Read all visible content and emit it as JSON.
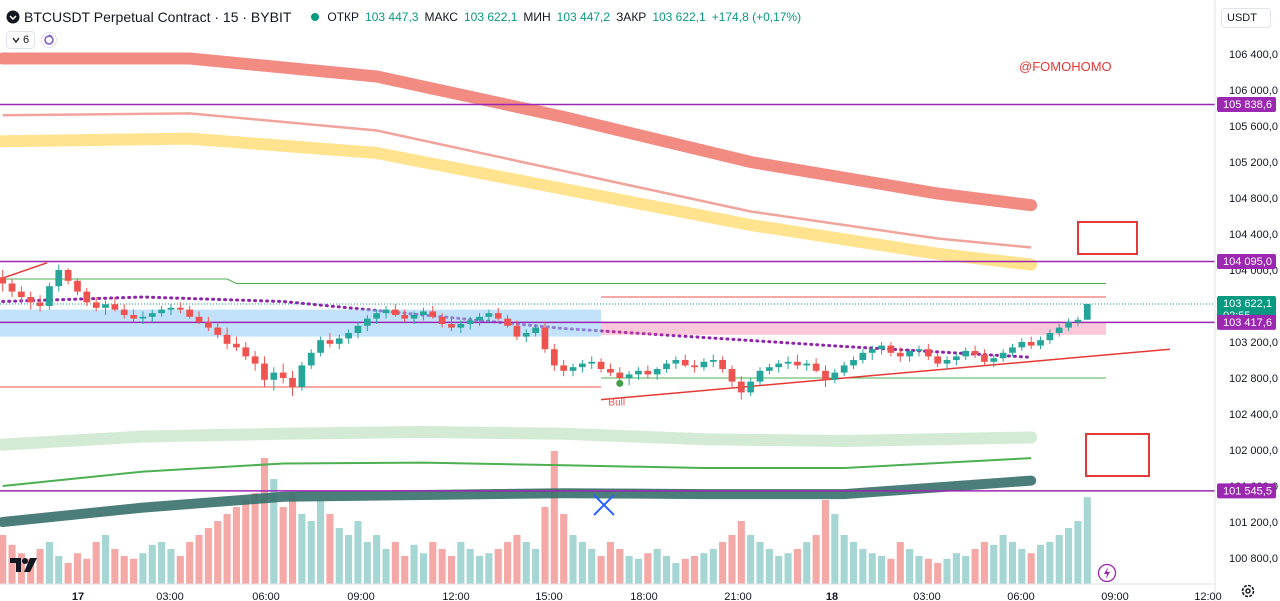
{
  "header": {
    "symbol": "BTCUSDT Perpetual Contract · 15 · BYBIT",
    "open_label": "ОТКР",
    "open": "103 447,3",
    "high_label": "МАКС",
    "high": "103 622,1",
    "low_label": "МИН",
    "low": "103 447,2",
    "close_label": "ЗАКР",
    "close": "103 622,1",
    "change": "+174,8 (+0,17%)"
  },
  "toolbar": {
    "indicator_count": "6",
    "currency": "USDT"
  },
  "watermark": "@FOMOHOMO",
  "bull_label": "Bull",
  "colors": {
    "up": "#26a69a",
    "down": "#ef5350",
    "purple": "#9c27b0",
    "accent": "#2962ff"
  },
  "icons": {
    "logo": "tradingview-logo-icon",
    "settings": "gear-icon",
    "alert": "lightning-icon"
  },
  "price_tags": [
    {
      "value": 105838.6,
      "label": "105 838,6",
      "color": "#9c27b0"
    },
    {
      "value": 104095.0,
      "label": "104 095,0",
      "color": "#9c27b0"
    },
    {
      "value": 103622.1,
      "label": "103 622,1",
      "sub": "02:55",
      "color": "#089981"
    },
    {
      "value": 103417.6,
      "label": "103 417,6",
      "color": "#9c27b0"
    },
    {
      "value": 101545.5,
      "label": "101 545,5",
      "color": "#9c27b0"
    }
  ],
  "chart_data": {
    "type": "candlestick",
    "timeframe": "15",
    "ylim": [
      100600,
      106600
    ],
    "y_ticks": [
      {
        "value": 106400,
        "label": "106 400,0"
      },
      {
        "value": 106000,
        "label": "106 000,0"
      },
      {
        "value": 105600,
        "label": "105 600,0"
      },
      {
        "value": 105200,
        "label": "105 200,0"
      },
      {
        "value": 104800,
        "label": "104 800,0"
      },
      {
        "value": 104400,
        "label": "104 400,0"
      },
      {
        "value": 104000,
        "label": "104 000,0"
      },
      {
        "value": 103200,
        "label": "103 200,0"
      },
      {
        "value": 102800,
        "label": "102 800,0"
      },
      {
        "value": 102400,
        "label": "102 400,0"
      },
      {
        "value": 102000,
        "label": "102 000,0"
      },
      {
        "value": 101600,
        "label": "101 600,0"
      },
      {
        "value": 101200,
        "label": "101 200,0"
      },
      {
        "value": 100800,
        "label": "100 800,0"
      }
    ],
    "x_ticks": [
      "17",
      "03:00",
      "06:00",
      "09:00",
      "12:00",
      "15:00",
      "18:00",
      "21:00",
      "18",
      "03:00",
      "06:00",
      "09:00",
      "12:00"
    ],
    "bars_count": 117,
    "candles_ohlc": [
      [
        103920,
        104000,
        103760,
        103850
      ],
      [
        103850,
        103900,
        103700,
        103760
      ],
      [
        103760,
        103820,
        103620,
        103700
      ],
      [
        103700,
        103760,
        103560,
        103640
      ],
      [
        103640,
        103720,
        103540,
        103600
      ],
      [
        103600,
        103860,
        103560,
        103820
      ],
      [
        103820,
        104060,
        103760,
        104000
      ],
      [
        104000,
        104020,
        103840,
        103880
      ],
      [
        103880,
        103900,
        103720,
        103760
      ],
      [
        103760,
        103800,
        103600,
        103640
      ],
      [
        103640,
        103700,
        103540,
        103580
      ],
      [
        103580,
        103660,
        103500,
        103620
      ],
      [
        103620,
        103700,
        103540,
        103560
      ],
      [
        103560,
        103620,
        103460,
        103500
      ],
      [
        103500,
        103560,
        103420,
        103460
      ],
      [
        103460,
        103540,
        103400,
        103480
      ],
      [
        103480,
        103560,
        103420,
        103520
      ],
      [
        103520,
        103600,
        103480,
        103560
      ],
      [
        103560,
        103620,
        103500,
        103580
      ],
      [
        103580,
        103640,
        103520,
        103560
      ],
      [
        103560,
        103600,
        103460,
        103480
      ],
      [
        103480,
        103540,
        103400,
        103420
      ],
      [
        103420,
        103480,
        103320,
        103360
      ],
      [
        103360,
        103420,
        103240,
        103280
      ],
      [
        103280,
        103360,
        103120,
        103180
      ],
      [
        103180,
        103260,
        103100,
        103140
      ],
      [
        103140,
        103200,
        103000,
        103040
      ],
      [
        103040,
        103100,
        102880,
        102960
      ],
      [
        102960,
        103040,
        102700,
        102780
      ],
      [
        102780,
        102920,
        102660,
        102860
      ],
      [
        102860,
        102960,
        102740,
        102800
      ],
      [
        102800,
        102880,
        102600,
        102700
      ],
      [
        102700,
        102980,
        102660,
        102940
      ],
      [
        102940,
        103120,
        102900,
        103080
      ],
      [
        103080,
        103260,
        103040,
        103220
      ],
      [
        103220,
        103300,
        103140,
        103180
      ],
      [
        103180,
        103280,
        103120,
        103240
      ],
      [
        103240,
        103340,
        103180,
        103300
      ],
      [
        103300,
        103420,
        103240,
        103380
      ],
      [
        103380,
        103500,
        103320,
        103460
      ],
      [
        103460,
        103560,
        103400,
        103520
      ],
      [
        103520,
        103600,
        103460,
        103560
      ],
      [
        103560,
        103620,
        103480,
        103500
      ],
      [
        103500,
        103560,
        103420,
        103460
      ],
      [
        103460,
        103540,
        103400,
        103500
      ],
      [
        103500,
        103580,
        103440,
        103540
      ],
      [
        103540,
        103600,
        103460,
        103480
      ],
      [
        103480,
        103520,
        103360,
        103400
      ],
      [
        103400,
        103460,
        103320,
        103360
      ],
      [
        103360,
        103440,
        103300,
        103400
      ],
      [
        103400,
        103480,
        103340,
        103440
      ],
      [
        103440,
        103520,
        103380,
        103480
      ],
      [
        103480,
        103560,
        103420,
        103520
      ],
      [
        103520,
        103580,
        103440,
        103460
      ],
      [
        103460,
        103500,
        103360,
        103380
      ],
      [
        103380,
        103440,
        103220,
        103260
      ],
      [
        103260,
        103340,
        103200,
        103300
      ],
      [
        103300,
        103400,
        103260,
        103360
      ],
      [
        103360,
        103420,
        103080,
        103120
      ],
      [
        103120,
        103180,
        102880,
        102940
      ],
      [
        102940,
        103000,
        102820,
        102880
      ],
      [
        102880,
        102960,
        102820,
        102920
      ],
      [
        102920,
        103000,
        102860,
        102960
      ],
      [
        102960,
        103040,
        102900,
        102980
      ],
      [
        102980,
        103020,
        102860,
        102900
      ],
      [
        102900,
        102960,
        102820,
        102860
      ],
      [
        102860,
        102920,
        102740,
        102800
      ],
      [
        102800,
        102880,
        102720,
        102840
      ],
      [
        102840,
        102920,
        102780,
        102880
      ],
      [
        102880,
        102940,
        102800,
        102840
      ],
      [
        102840,
        102920,
        102780,
        102900
      ],
      [
        102900,
        103000,
        102860,
        102960
      ],
      [
        102960,
        103040,
        102900,
        103000
      ],
      [
        103000,
        103060,
        102920,
        102940
      ],
      [
        102940,
        103000,
        102860,
        102920
      ],
      [
        102920,
        103020,
        102880,
        102980
      ],
      [
        102980,
        103060,
        102920,
        103000
      ],
      [
        103000,
        103040,
        102860,
        102900
      ],
      [
        102900,
        102940,
        102700,
        102760
      ],
      [
        102760,
        102820,
        102560,
        102640
      ],
      [
        102640,
        102800,
        102600,
        102760
      ],
      [
        102760,
        102920,
        102720,
        102880
      ],
      [
        102880,
        102960,
        102840,
        102920
      ],
      [
        102920,
        103000,
        102860,
        102960
      ],
      [
        102960,
        103040,
        102900,
        102980
      ],
      [
        102980,
        103060,
        102900,
        102940
      ],
      [
        102940,
        103000,
        102880,
        102960
      ],
      [
        102960,
        103020,
        102860,
        102880
      ],
      [
        102880,
        102940,
        102700,
        102780
      ],
      [
        102780,
        102900,
        102740,
        102860
      ],
      [
        102860,
        102980,
        102820,
        102940
      ],
      [
        102940,
        103040,
        102900,
        103000
      ],
      [
        103000,
        103120,
        102960,
        103080
      ],
      [
        103080,
        103160,
        103000,
        103120
      ],
      [
        103120,
        103200,
        103060,
        103160
      ],
      [
        103160,
        103200,
        103040,
        103080
      ],
      [
        103080,
        103140,
        102980,
        103040
      ],
      [
        103040,
        103120,
        102980,
        103100
      ],
      [
        103100,
        103160,
        103040,
        103120
      ],
      [
        103120,
        103180,
        103000,
        103040
      ],
      [
        103040,
        103080,
        102920,
        102960
      ],
      [
        102960,
        103040,
        102900,
        103000
      ],
      [
        103000,
        103080,
        102940,
        103040
      ],
      [
        103040,
        103140,
        103000,
        103100
      ],
      [
        103100,
        103160,
        103020,
        103060
      ],
      [
        103060,
        103120,
        102940,
        102980
      ],
      [
        102980,
        103060,
        102920,
        103020
      ],
      [
        103020,
        103120,
        102980,
        103080
      ],
      [
        103080,
        103180,
        103040,
        103140
      ],
      [
        103140,
        103240,
        103100,
        103200
      ],
      [
        103200,
        103260,
        103120,
        103160
      ],
      [
        103160,
        103260,
        103120,
        103220
      ],
      [
        103220,
        103340,
        103180,
        103300
      ],
      [
        103300,
        103400,
        103260,
        103360
      ],
      [
        103360,
        103460,
        103320,
        103420
      ],
      [
        103420,
        103480,
        103380,
        103447
      ],
      [
        103447.3,
        103622.1,
        103447.2,
        103622.1
      ]
    ],
    "volume_relative": [
      0.35,
      0.28,
      0.22,
      0.18,
      0.25,
      0.3,
      0.2,
      0.15,
      0.22,
      0.18,
      0.3,
      0.35,
      0.25,
      0.2,
      0.18,
      0.22,
      0.28,
      0.3,
      0.25,
      0.2,
      0.3,
      0.35,
      0.4,
      0.45,
      0.5,
      0.55,
      0.6,
      0.65,
      0.9,
      0.75,
      0.55,
      0.65,
      0.5,
      0.45,
      0.6,
      0.5,
      0.4,
      0.35,
      0.45,
      0.3,
      0.35,
      0.25,
      0.3,
      0.2,
      0.28,
      0.22,
      0.3,
      0.25,
      0.2,
      0.3,
      0.25,
      0.2,
      0.22,
      0.25,
      0.3,
      0.35,
      0.3,
      0.25,
      0.55,
      0.95,
      0.5,
      0.35,
      0.3,
      0.25,
      0.2,
      0.3,
      0.25,
      0.2,
      0.18,
      0.22,
      0.25,
      0.2,
      0.15,
      0.18,
      0.2,
      0.22,
      0.25,
      0.3,
      0.35,
      0.45,
      0.35,
      0.3,
      0.25,
      0.2,
      0.22,
      0.25,
      0.3,
      0.35,
      0.6,
      0.5,
      0.35,
      0.3,
      0.25,
      0.22,
      0.2,
      0.18,
      0.3,
      0.25,
      0.2,
      0.18,
      0.15,
      0.18,
      0.22,
      0.2,
      0.25,
      0.3,
      0.28,
      0.35,
      0.3,
      0.25,
      0.22,
      0.28,
      0.3,
      0.35,
      0.4,
      0.45,
      0.62
    ],
    "lines": {
      "ema_red_thick": [
        [
          0,
          106350
        ],
        [
          20,
          106350
        ],
        [
          40,
          106150
        ],
        [
          60,
          105700
        ],
        [
          80,
          105200
        ],
        [
          100,
          104850
        ],
        [
          110,
          104720
        ]
      ],
      "ema_red_thin": [
        [
          0,
          105720
        ],
        [
          20,
          105740
        ],
        [
          40,
          105550
        ],
        [
          60,
          105100
        ],
        [
          80,
          104650
        ],
        [
          100,
          104350
        ],
        [
          110,
          104250
        ]
      ],
      "ema_yellow": [
        [
          0,
          105430
        ],
        [
          20,
          105460
        ],
        [
          40,
          105300
        ],
        [
          60,
          104900
        ],
        [
          80,
          104500
        ],
        [
          100,
          104180
        ],
        [
          110,
          104060
        ]
      ],
      "ema_purple_dotted": [
        [
          0,
          103650
        ],
        [
          15,
          103700
        ],
        [
          30,
          103650
        ],
        [
          45,
          103500
        ],
        [
          60,
          103350
        ],
        [
          75,
          103250
        ],
        [
          90,
          103150
        ],
        [
          110,
          103030
        ]
      ],
      "band_green_light": [
        [
          0,
          102060
        ],
        [
          15,
          102150
        ],
        [
          30,
          102180
        ],
        [
          45,
          102200
        ],
        [
          60,
          102180
        ],
        [
          75,
          102120
        ],
        [
          90,
          102100
        ],
        [
          110,
          102140
        ]
      ],
      "band_green": [
        [
          0,
          101600
        ],
        [
          15,
          101760
        ],
        [
          30,
          101850
        ],
        [
          45,
          101860
        ],
        [
          60,
          101830
        ],
        [
          75,
          101800
        ],
        [
          90,
          101800
        ],
        [
          110,
          101910
        ]
      ],
      "band_teal_thick": [
        [
          0,
          101200
        ],
        [
          15,
          101360
        ],
        [
          30,
          101480
        ],
        [
          45,
          101500
        ],
        [
          60,
          101520
        ],
        [
          75,
          101510
        ],
        [
          90,
          101510
        ],
        [
          110,
          101660
        ]
      ]
    },
    "horizontal_levels": [
      105838.6,
      104095.0,
      103417.6,
      101545.5
    ],
    "legend": "top-left"
  }
}
